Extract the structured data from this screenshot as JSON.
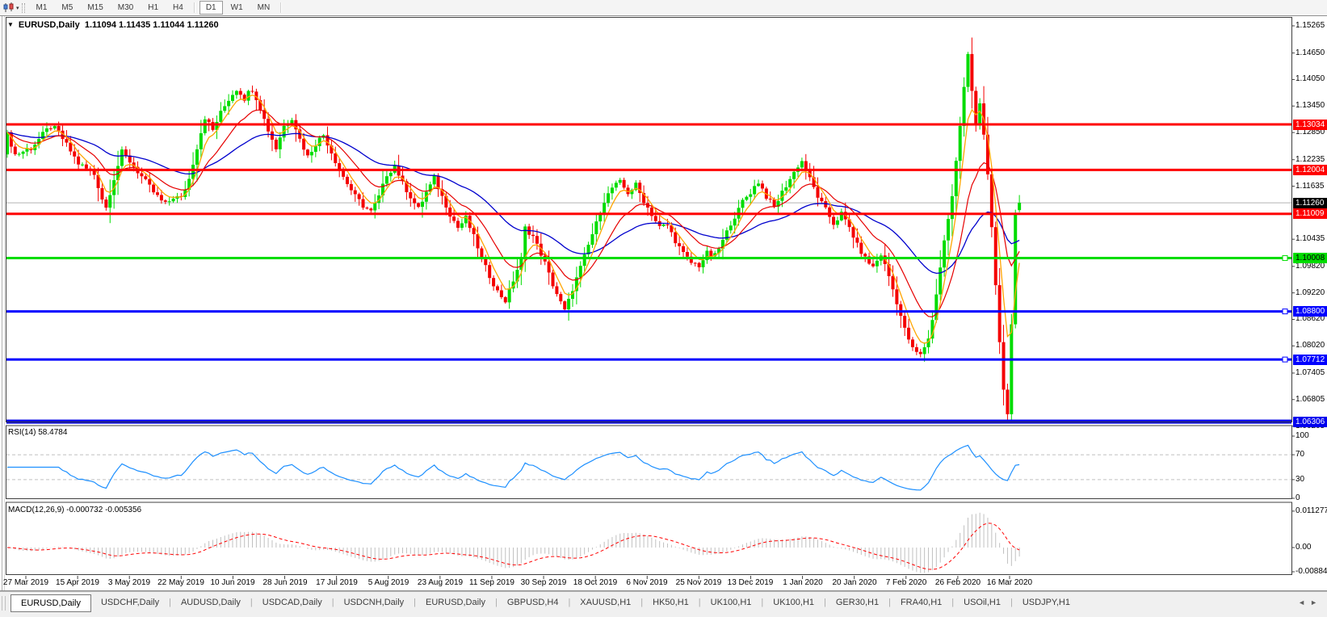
{
  "toolbar": {
    "timeframes": [
      "M1",
      "M5",
      "M15",
      "M30",
      "H1",
      "H4",
      "D1",
      "W1",
      "MN"
    ],
    "active_timeframe": "D1",
    "chart_type_icon": "candlestick-chart-icon"
  },
  "chart": {
    "symbol_title": "EURUSD,Daily",
    "ohlc_text": "1.11094 1.11435 1.11044 1.11260"
  },
  "indicators": {
    "rsi": {
      "label": "RSI(14) 58.4784",
      "period": 14,
      "last_value": 58.4784,
      "scale_labels": [
        "100",
        "70",
        "30",
        "0"
      ],
      "scale_values": [
        100,
        70,
        30,
        0
      ],
      "level_lines": [
        70,
        30
      ],
      "line_color": "#1e90ff",
      "level_color": "#c0c0c0"
    },
    "macd": {
      "label": "MACD(12,26,9) -0.000732 -0.005356",
      "params": [
        12,
        26,
        9
      ],
      "macd_value": -0.000732,
      "signal_value": -0.005356,
      "scale_labels": [
        "0.011277",
        "0.00",
        "-0.008845"
      ],
      "scale_values": [
        0.011277,
        0.0,
        -0.008845
      ],
      "histogram_color": "#c0c0c0",
      "signal_color": "#ff0000"
    }
  },
  "tabs": {
    "items": [
      "EURUSD,Daily",
      "USDCHF,Daily",
      "AUDUSD,Daily",
      "USDCAD,Daily",
      "USDCNH,Daily",
      "EURUSD,Daily",
      "GBPUSD,H4",
      "XAUUSD,H1",
      "HK50,H1",
      "UK100,H1",
      "UK100,H1",
      "GER30,H1",
      "FRA40,H1",
      "USOil,H1",
      "USDJPY,H1"
    ],
    "active_index": 0,
    "scroll_left": "◄",
    "scroll_right": "►"
  },
  "chart_data": {
    "type": "candlestick",
    "symbol": "EURUSD",
    "timeframe": "Daily",
    "candle_colors": {
      "bull": "#00dc00",
      "bear": "#f40000"
    },
    "price_axis": {
      "ticks": [
        "1.15265",
        "1.14650",
        "1.14050",
        "1.13450",
        "1.12850",
        "1.12235",
        "1.11635",
        "1.10435",
        "1.09820",
        "1.09220",
        "1.08620",
        "1.08020",
        "1.07405",
        "1.06805",
        "1.06205"
      ]
    },
    "x_axis": {
      "dates": [
        "27 Mar 2019",
        "15 Apr 2019",
        "3 May 2019",
        "22 May 2019",
        "10 Jun 2019",
        "28 Jun 2019",
        "17 Jul 2019",
        "5 Aug 2019",
        "23 Aug 2019",
        "11 Sep 2019",
        "30 Sep 2019",
        "18 Oct 2019",
        "6 Nov 2019",
        "25 Nov 2019",
        "13 Dec 2019",
        "1 Jan 2020",
        "20 Jan 2020",
        "7 Feb 2020",
        "26 Feb 2020",
        "16 Mar 2020"
      ]
    },
    "current_price": {
      "price": 1.1126,
      "label": "1.11260",
      "line_color": "#b4b4b4",
      "badge_bg": "#000000",
      "badge_fg": "#ffffff"
    },
    "hlines": [
      {
        "price": 1.13034,
        "label": "1.13034",
        "color": "#ff0000",
        "badge_fg": "#ffffff",
        "thickness": 3,
        "marker": false
      },
      {
        "price": 1.12004,
        "label": "1.12004",
        "color": "#ff0000",
        "badge_fg": "#ffffff",
        "thickness": 3,
        "marker": false
      },
      {
        "price": 1.11009,
        "label": "1.11009",
        "color": "#ff0000",
        "badge_fg": "#ffffff",
        "thickness": 3,
        "marker": false
      },
      {
        "price": 1.10008,
        "label": "1.10008",
        "color": "#00dc00",
        "badge_fg": "#000000",
        "thickness": 3,
        "marker": true
      },
      {
        "price": 1.088,
        "label": "1.08800",
        "color": "#0000ff",
        "badge_fg": "#ffffff",
        "thickness": 3,
        "marker": true
      },
      {
        "price": 1.07712,
        "label": "1.07712",
        "color": "#0000ff",
        "badge_fg": "#ffffff",
        "thickness": 3,
        "marker": true
      },
      {
        "price": 1.06306,
        "label": "1.06306",
        "color": "#0000ee",
        "badge_fg": "#ffffff",
        "thickness": 5,
        "marker": false
      }
    ],
    "moving_averages": [
      {
        "name": "slow-ma",
        "period": 40,
        "color": "#0000cd",
        "width": 1.3
      },
      {
        "name": "medium-ma",
        "period": 14,
        "color": "#e60000",
        "width": 1.2
      },
      {
        "name": "fast-ma",
        "period": 5,
        "color": "#ffa500",
        "width": 1.3
      }
    ],
    "last_bar": {
      "open": 1.11094,
      "high": 1.11435,
      "low": 1.11044,
      "close": 1.1126
    },
    "price_clamp": {
      "high": 1.15,
      "low": 1.063
    },
    "close_waypoints": [
      [
        0,
        1.128
      ],
      [
        2,
        1.1235
      ],
      [
        6,
        1.125
      ],
      [
        11,
        1.13
      ],
      [
        13,
        1.1285
      ],
      [
        18,
        1.1215
      ],
      [
        22,
        1.119
      ],
      [
        24,
        1.1135
      ],
      [
        25,
        1.1115
      ],
      [
        27,
        1.118
      ],
      [
        29,
        1.124
      ],
      [
        31,
        1.122
      ],
      [
        34,
        1.1185
      ],
      [
        37,
        1.115
      ],
      [
        40,
        1.112
      ],
      [
        42,
        1.114
      ],
      [
        44,
        1.1135
      ],
      [
        46,
        1.118
      ],
      [
        48,
        1.125
      ],
      [
        50,
        1.132
      ],
      [
        52,
        1.129
      ],
      [
        54,
        1.133
      ],
      [
        56,
        1.136
      ],
      [
        58,
        1.1385
      ],
      [
        60,
        1.1365
      ],
      [
        62,
        1.1385
      ],
      [
        64,
        1.134
      ],
      [
        66,
        1.129
      ],
      [
        68,
        1.125
      ],
      [
        70,
        1.13
      ],
      [
        72,
        1.132
      ],
      [
        74,
        1.127
      ],
      [
        76,
        1.123
      ],
      [
        78,
        1.126
      ],
      [
        80,
        1.128
      ],
      [
        82,
        1.124
      ],
      [
        84,
        1.12
      ],
      [
        86,
        1.117
      ],
      [
        88,
        1.114
      ],
      [
        90,
        1.112
      ],
      [
        92,
        1.1105
      ],
      [
        94,
        1.114
      ],
      [
        96,
        1.119
      ],
      [
        98,
        1.121
      ],
      [
        100,
        1.117
      ],
      [
        102,
        1.114
      ],
      [
        104,
        1.111
      ],
      [
        106,
        1.115
      ],
      [
        108,
        1.118
      ],
      [
        110,
        1.114
      ],
      [
        112,
        1.11
      ],
      [
        114,
        1.107
      ],
      [
        116,
        1.109
      ],
      [
        118,
        1.105
      ],
      [
        120,
        1.1
      ],
      [
        122,
        1.096
      ],
      [
        124,
        1.0925
      ],
      [
        126,
        1.0905
      ],
      [
        128,
        1.095
      ],
      [
        130,
        1.1
      ],
      [
        131,
        1.107
      ],
      [
        133,
        1.105
      ],
      [
        136,
        1.099
      ],
      [
        138,
        1.094
      ],
      [
        140,
        1.09
      ],
      [
        141,
        1.088
      ],
      [
        143,
        1.093
      ],
      [
        145,
        1.098
      ],
      [
        147,
        1.103
      ],
      [
        149,
        1.108
      ],
      [
        151,
        1.113
      ],
      [
        153,
        1.116
      ],
      [
        155,
        1.117
      ],
      [
        157,
        1.115
      ],
      [
        159,
        1.1165
      ],
      [
        161,
        1.113
      ],
      [
        163,
        1.11
      ],
      [
        165,
        1.107
      ],
      [
        167,
        1.1075
      ],
      [
        169,
        1.104
      ],
      [
        171,
        1.101
      ],
      [
        173,
        1.099
      ],
      [
        175,
        1.0985
      ],
      [
        177,
        1.101
      ],
      [
        179,
        1.1005
      ],
      [
        181,
        1.104
      ],
      [
        183,
        1.108
      ],
      [
        185,
        1.111
      ],
      [
        186,
        1.113
      ],
      [
        188,
        1.115
      ],
      [
        190,
        1.1175
      ],
      [
        192,
        1.114
      ],
      [
        194,
        1.1115
      ],
      [
        196,
        1.115
      ],
      [
        198,
        1.118
      ],
      [
        200,
        1.121
      ],
      [
        201,
        1.122
      ],
      [
        203,
        1.118
      ],
      [
        205,
        1.114
      ],
      [
        207,
        1.111
      ],
      [
        209,
        1.108
      ],
      [
        211,
        1.11
      ],
      [
        213,
        1.107
      ],
      [
        215,
        1.103
      ],
      [
        217,
        1.1
      ],
      [
        219,
        1.098
      ],
      [
        221,
        1.101
      ],
      [
        223,
        1.096
      ],
      [
        225,
        1.09
      ],
      [
        227,
        1.084
      ],
      [
        229,
        1.0795
      ],
      [
        231,
        1.078
      ],
      [
        233,
        1.082
      ],
      [
        234,
        1.086
      ],
      [
        235,
        1.092
      ],
      [
        236,
        1.098
      ],
      [
        237,
        1.104
      ],
      [
        238,
        1.109
      ],
      [
        239,
        1.114
      ],
      [
        240,
        1.122
      ],
      [
        241,
        1.13
      ],
      [
        242,
        1.139
      ],
      [
        243,
        1.1465
      ],
      [
        244,
        1.138
      ],
      [
        245,
        1.13
      ],
      [
        246,
        1.1345
      ],
      [
        247,
        1.128
      ],
      [
        248,
        1.119
      ],
      [
        249,
        1.107
      ],
      [
        250,
        1.094
      ],
      [
        251,
        1.081
      ],
      [
        252,
        1.0705
      ],
      [
        253,
        1.0645
      ],
      [
        254,
        1.085
      ],
      [
        255,
        1.11
      ],
      [
        256,
        1.1126
      ]
    ]
  }
}
